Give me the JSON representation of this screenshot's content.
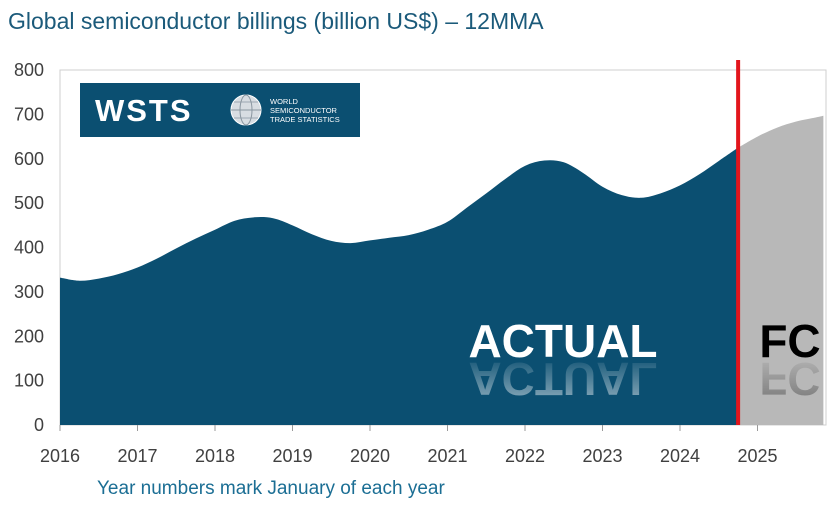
{
  "header": {
    "title": "Global semiconductor billings (billion US$) – 12MMA"
  },
  "footer": {
    "note": "Year numbers mark January of each year"
  },
  "logo": {
    "wordmark": "WSTS",
    "line1": "WORLD",
    "line2": "SEMICONDUCTOR",
    "line3": "TRADE STATISTICS"
  },
  "colors": {
    "actual": "#0b4f71",
    "forecast": "#b8b8b8",
    "divider": "#e3151c",
    "axis_text": "#404040",
    "title": "#1b5a7a"
  },
  "chart_data": {
    "type": "area",
    "title": "Global semiconductor billings (billion US$) – 12MMA",
    "xlabel": "Year numbers mark January of each year",
    "ylabel": "",
    "ylim": [
      0,
      800
    ],
    "xlim": [
      2016,
      2025.85
    ],
    "yticks": [
      0,
      100,
      200,
      300,
      400,
      500,
      600,
      700,
      800
    ],
    "xticks": [
      "2016",
      "2017",
      "2018",
      "2019",
      "2020",
      "2021",
      "2022",
      "2023",
      "2024",
      "2025"
    ],
    "grid": false,
    "divider_x": 2024.75,
    "series": [
      {
        "name": "ACTUAL",
        "x": [
          2016,
          2016.25,
          2016.5,
          2016.75,
          2017,
          2017.25,
          2017.5,
          2017.75,
          2018,
          2018.25,
          2018.5,
          2018.75,
          2019,
          2019.25,
          2019.5,
          2019.75,
          2020,
          2020.25,
          2020.5,
          2020.75,
          2021,
          2021.25,
          2021.5,
          2021.75,
          2022,
          2022.25,
          2022.5,
          2022.75,
          2023,
          2023.25,
          2023.5,
          2023.75,
          2024,
          2024.25,
          2024.5,
          2024.75
        ],
        "values": [
          332,
          325,
          330,
          340,
          355,
          375,
          398,
          420,
          440,
          460,
          468,
          466,
          450,
          430,
          415,
          410,
          416,
          422,
          428,
          440,
          458,
          490,
          522,
          555,
          584,
          596,
          592,
          568,
          537,
          518,
          512,
          522,
          540,
          565,
          595,
          625
        ]
      },
      {
        "name": "FC",
        "x": [
          2024.75,
          2025,
          2025.25,
          2025.5,
          2025.75,
          2025.85
        ],
        "values": [
          625,
          650,
          670,
          684,
          693,
          697
        ]
      }
    ],
    "annotations": [
      "ACTUAL",
      "FC"
    ]
  }
}
